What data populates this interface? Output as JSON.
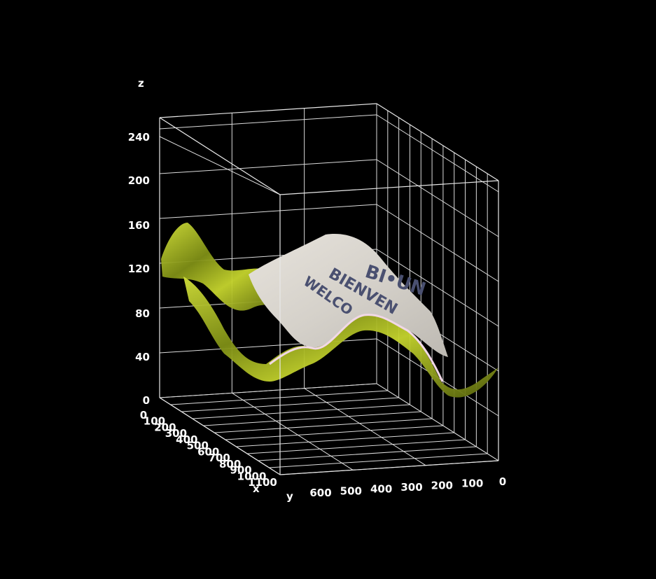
{
  "chart_data": {
    "type": "surface3d",
    "title": "",
    "axes": {
      "x": {
        "label": "x",
        "range": [
          0,
          1100
        ],
        "ticks": [
          "0",
          "100",
          "200",
          "300",
          "400",
          "500",
          "600",
          "700",
          "800",
          "900",
          "1000",
          "1100"
        ]
      },
      "y": {
        "label": "y",
        "range": [
          0,
          600
        ],
        "ticks": [
          "600",
          "500",
          "400",
          "300",
          "200",
          "100",
          "0"
        ]
      },
      "z": {
        "label": "z",
        "range": [
          0,
          240
        ],
        "ticks": [
          "0",
          "40",
          "80",
          "120",
          "160",
          "200",
          "240"
        ]
      }
    },
    "grid": true,
    "background": "#000000",
    "surface_texture": {
      "description_colors": [
        "#c8d630",
        "#6f7d12",
        "#d9d6cf"
      ],
      "banner_text_lines": [
        "BI•UN",
        "BIENVEN",
        "WELCO"
      ]
    }
  }
}
